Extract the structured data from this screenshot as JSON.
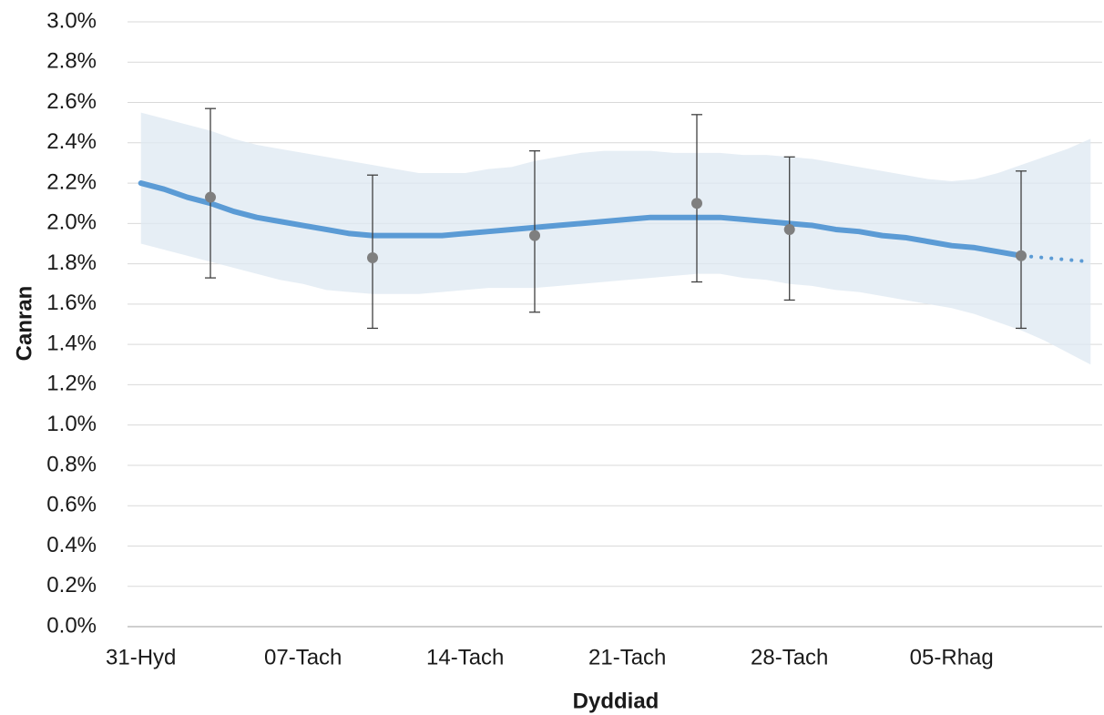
{
  "chart_data": {
    "type": "line",
    "x_label": "Dyddiad",
    "y_label": "Canran",
    "categories": [
      "31-Hyd",
      null,
      null,
      null,
      null,
      null,
      null,
      "07-Tach",
      null,
      null,
      null,
      null,
      null,
      null,
      "14-Tach",
      null,
      null,
      null,
      null,
      null,
      null,
      "21-Tach",
      null,
      null,
      null,
      null,
      null,
      null,
      "28-Tach",
      null,
      null,
      null,
      null,
      null,
      null,
      "05-Rhag",
      null,
      null,
      null,
      null,
      null,
      null
    ],
    "ylim": [
      0,
      3
    ],
    "yticks": [
      {
        "value": 0,
        "label": "0.0%"
      },
      {
        "value": 0.2,
        "label": "0.2%"
      },
      {
        "value": 0.4,
        "label": "0.4%"
      },
      {
        "value": 0.6,
        "label": "0.6%"
      },
      {
        "value": 0.8,
        "label": "0.8%"
      },
      {
        "value": 1,
        "label": "1.0%"
      },
      {
        "value": 1.2,
        "label": "1.2%"
      },
      {
        "value": 1.4,
        "label": "1.4%"
      },
      {
        "value": 1.6,
        "label": "1.6%"
      },
      {
        "value": 1.8,
        "label": "1.8%"
      },
      {
        "value": 2,
        "label": "2.0%"
      },
      {
        "value": 2.2,
        "label": "2.2%"
      },
      {
        "value": 2.4,
        "label": "2.4%"
      },
      {
        "value": 2.6,
        "label": "2.6%"
      },
      {
        "value": 2.8,
        "label": "2.8%"
      },
      {
        "value": 3,
        "label": "3.0%"
      }
    ],
    "grid": true,
    "series": [
      {
        "color": "#dde8f1",
        "upper": [
          2.55,
          2.52,
          2.49,
          2.46,
          2.42,
          2.39,
          2.37,
          2.35,
          2.33,
          2.31,
          2.29,
          2.27,
          2.25,
          2.25,
          2.25,
          2.27,
          2.28,
          2.31,
          2.33,
          2.35,
          2.36,
          2.36,
          2.36,
          2.35,
          2.35,
          2.35,
          2.34,
          2.34,
          2.33,
          2.32,
          2.3,
          2.28,
          2.26,
          2.24,
          2.22,
          2.21,
          2.22,
          2.25,
          2.29,
          2.33,
          2.37,
          2.42
        ],
        "lower": [
          1.9,
          1.87,
          1.84,
          1.81,
          1.78,
          1.75,
          1.72,
          1.7,
          1.67,
          1.66,
          1.65,
          1.65,
          1.65,
          1.66,
          1.67,
          1.68,
          1.68,
          1.68,
          1.69,
          1.7,
          1.71,
          1.72,
          1.73,
          1.74,
          1.75,
          1.75,
          1.73,
          1.72,
          1.7,
          1.69,
          1.67,
          1.66,
          1.64,
          1.62,
          1.6,
          1.58,
          1.55,
          1.51,
          1.47,
          1.42,
          1.36,
          1.3
        ]
      },
      {
        "color": "#5b9bd5",
        "linestyle": "solid",
        "values": [
          2.2,
          2.17,
          2.13,
          2.1,
          2.06,
          2.03,
          2.01,
          1.99,
          1.97,
          1.95,
          1.94,
          1.94,
          1.94,
          1.94,
          1.95,
          1.96,
          1.97,
          1.98,
          1.99,
          2.0,
          2.01,
          2.02,
          2.03,
          2.03,
          2.03,
          2.03,
          2.02,
          2.01,
          2.0,
          1.99,
          1.97,
          1.96,
          1.94,
          1.93,
          1.91,
          1.89,
          1.88,
          1.86,
          1.84,
          null,
          null,
          null
        ]
      },
      {
        "color": "#5b9bd5",
        "linestyle": "dotted",
        "values": [
          null,
          null,
          null,
          null,
          null,
          null,
          null,
          null,
          null,
          null,
          null,
          null,
          null,
          null,
          null,
          null,
          null,
          null,
          null,
          null,
          null,
          null,
          null,
          null,
          null,
          null,
          null,
          null,
          null,
          null,
          null,
          null,
          null,
          null,
          null,
          null,
          null,
          null,
          1.84,
          1.83,
          1.82,
          1.81
        ]
      },
      {
        "color": "#7f7f7f",
        "error_color": "#404040",
        "values": [
          null,
          null,
          null,
          2.13,
          null,
          null,
          null,
          null,
          null,
          null,
          1.83,
          null,
          null,
          null,
          null,
          null,
          null,
          1.94,
          null,
          null,
          null,
          null,
          null,
          null,
          2.1,
          null,
          null,
          null,
          1.97,
          null,
          null,
          null,
          null,
          null,
          null,
          null,
          null,
          null,
          1.84,
          null,
          null,
          null
        ],
        "upper": [
          null,
          null,
          null,
          2.57,
          null,
          null,
          null,
          null,
          null,
          null,
          2.24,
          null,
          null,
          null,
          null,
          null,
          null,
          2.36,
          null,
          null,
          null,
          null,
          null,
          null,
          2.54,
          null,
          null,
          null,
          2.33,
          null,
          null,
          null,
          null,
          null,
          null,
          null,
          null,
          null,
          2.26,
          null,
          null,
          null
        ],
        "lower": [
          null,
          null,
          null,
          1.73,
          null,
          null,
          null,
          null,
          null,
          null,
          1.48,
          null,
          null,
          null,
          null,
          null,
          null,
          1.56,
          null,
          null,
          null,
          null,
          null,
          null,
          1.71,
          null,
          null,
          null,
          1.62,
          null,
          null,
          null,
          null,
          null,
          null,
          null,
          null,
          null,
          1.48,
          null,
          null,
          null
        ]
      }
    ]
  }
}
